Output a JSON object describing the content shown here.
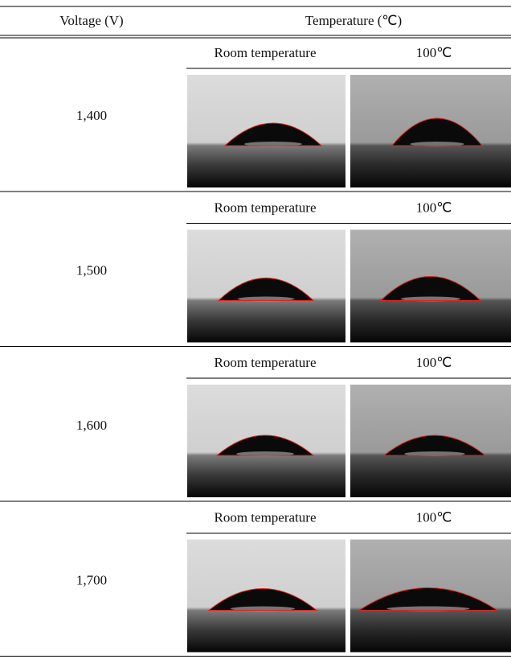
{
  "header": {
    "voltage": "Voltage (V)",
    "temperature": "Temperature (℃)"
  },
  "rows": [
    {
      "voltage": "1,400",
      "conditions": [
        "Room temperature",
        "100℃"
      ]
    },
    {
      "voltage": "1,500",
      "conditions": [
        "Room temperature",
        "100℃"
      ]
    },
    {
      "voltage": "1,600",
      "conditions": [
        "Room temperature",
        "100℃"
      ]
    },
    {
      "voltage": "1,700",
      "conditions": [
        "Room temperature",
        "100℃"
      ]
    }
  ]
}
